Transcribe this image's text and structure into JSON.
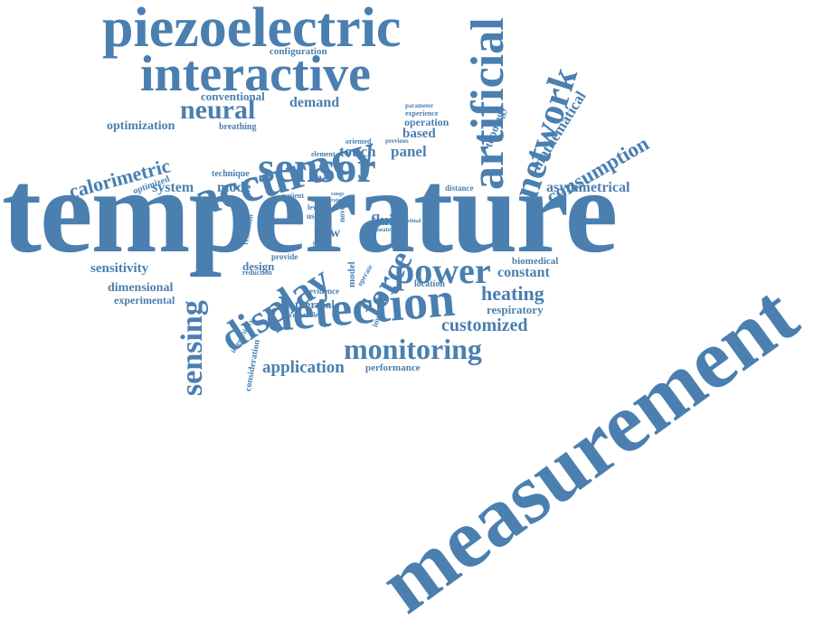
{
  "colors": {
    "word": "#4a7fb0",
    "background": "#ffffff"
  },
  "words": {
    "temperature": "temperature",
    "measurement": "measurement",
    "piezoelectric": "piezoelectric",
    "interactive": "interactive",
    "accuracy": "accuracy",
    "sensor": "sensor",
    "artificial": "artificial",
    "network": "network",
    "neural": "neural",
    "detection": "detection",
    "display": "display",
    "power": "power",
    "sensing": "sensing",
    "monitoring": "monitoring",
    "force": "force",
    "calorimetric": "calorimetric",
    "consumption": "consumption",
    "mathematical": "mathematical",
    "heating": "heating",
    "application": "application",
    "customized": "customized",
    "asymmetrical": "asymmetrical",
    "sensitivity": "sensitivity",
    "dimensional": "dimensional",
    "system": "system",
    "mode": "mode",
    "optimization": "optimization",
    "configuration": "configuration",
    "conventional": "conventional",
    "demand": "demand",
    "touch": "touch",
    "panel": "panel",
    "based": "based",
    "fluid": "fluid",
    "flow": "flow",
    "constant": "constant",
    "experimental": "experimental",
    "design": "design",
    "thermal": "thermal",
    "respiratory": "respiratory",
    "topology": "topology",
    "operation": "operation",
    "optimized": "optimized",
    "biomedical": "biomedical",
    "location": "location",
    "performance": "performance",
    "consideration": "consideration",
    "breathing": "breathing",
    "technique": "technique",
    "model": "model",
    "evidence": "evidence",
    "improved": "improved",
    "distance": "distance",
    "patient": "patient",
    "element": "element",
    "oriented": "oriented",
    "previous": "previous",
    "experience": "experience",
    "parameter": "parameter",
    "provide": "provide",
    "reduction": "reduction",
    "acceptable": "acceptable",
    "interactivity": "interactivity",
    "resolution": "resolution",
    "greater": "greater",
    "level": "level",
    "user": "user",
    "range": "range",
    "rate": "rate",
    "novel": "novel",
    "heater": "heater",
    "operate": "operate",
    "work": "work",
    "paper": "paper",
    "optimal": "optimal"
  }
}
